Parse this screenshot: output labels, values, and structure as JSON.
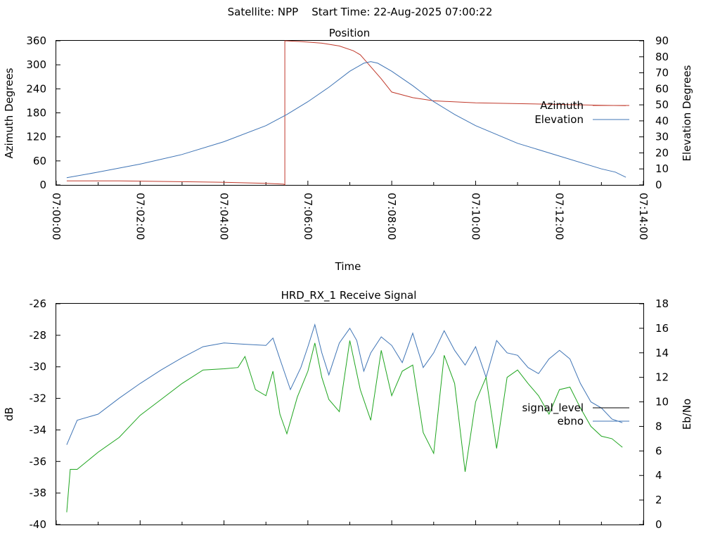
{
  "header": {
    "title": "Satellite: NPP    Start Time: 22-Aug-2025 07:00:22"
  },
  "chart_data": [
    {
      "type": "line",
      "title": "Position",
      "xlabel": "Time",
      "ylabel": "Azimuth Degrees",
      "y2label": "Elevation Degrees",
      "xlim": [
        "07:00:00",
        "07:14:00"
      ],
      "ylim": [
        0,
        360
      ],
      "y2lim": [
        0,
        90
      ],
      "x_ticks": [
        "07:00:00",
        "07:02:00",
        "07:04:00",
        "07:06:00",
        "07:08:00",
        "07:10:00",
        "07:12:00",
        "07:14:00"
      ],
      "y_ticks": [
        "0",
        "60",
        "120",
        "180",
        "240",
        "300",
        "360"
      ],
      "y2_ticks": [
        "0",
        "10",
        "20",
        "30",
        "40",
        "50",
        "60",
        "70",
        "80",
        "90"
      ],
      "legend_position": "right",
      "series": [
        {
          "name": "Azimuth",
          "axis": "left",
          "color": "#c0392b",
          "points": [
            [
              "07:00:15",
              10
            ],
            [
              "07:01:30",
              10
            ],
            [
              "07:03:00",
              8
            ],
            [
              "07:04:00",
              6.5
            ],
            [
              "07:05:00",
              4
            ],
            [
              "07:05:25",
              2
            ],
            [
              "07:05:27",
              0.5
            ],
            [
              "07:05:27",
              360
            ],
            [
              "07:05:50",
              358
            ],
            [
              "07:06:20",
              354
            ],
            [
              "07:06:45",
              347
            ],
            [
              "07:07:05",
              335
            ],
            [
              "07:07:15",
              325
            ],
            [
              "07:07:25",
              305
            ],
            [
              "07:07:35",
              285
            ],
            [
              "07:07:45",
              265
            ],
            [
              "07:08:00",
              232
            ],
            [
              "07:08:30",
              218
            ],
            [
              "07:09:00",
              210
            ],
            [
              "07:10:00",
              205
            ],
            [
              "07:11:00",
              203
            ],
            [
              "07:12:00",
              201
            ],
            [
              "07:13:00",
              199
            ],
            [
              "07:13:35",
              198
            ]
          ]
        },
        {
          "name": "Elevation",
          "axis": "right",
          "color": "#3f74b5",
          "points": [
            [
              "07:00:15",
              4.5
            ],
            [
              "07:01:00",
              8
            ],
            [
              "07:02:00",
              13
            ],
            [
              "07:03:00",
              19
            ],
            [
              "07:04:00",
              27
            ],
            [
              "07:05:00",
              37
            ],
            [
              "07:05:30",
              44
            ],
            [
              "07:06:00",
              52
            ],
            [
              "07:06:30",
              61
            ],
            [
              "07:07:00",
              71
            ],
            [
              "07:07:20",
              76
            ],
            [
              "07:07:30",
              77
            ],
            [
              "07:07:40",
              76
            ],
            [
              "07:08:00",
              71
            ],
            [
              "07:08:30",
              62
            ],
            [
              "07:09:00",
              52
            ],
            [
              "07:09:30",
              44
            ],
            [
              "07:10:00",
              37
            ],
            [
              "07:11:00",
              26
            ],
            [
              "07:12:00",
              18
            ],
            [
              "07:13:00",
              10
            ],
            [
              "07:13:20",
              8
            ],
            [
              "07:13:35",
              4.8
            ]
          ]
        }
      ]
    },
    {
      "type": "line",
      "title": "HRD_RX_1 Receive Signal",
      "ylabel": "dB",
      "y2label": "Eb/No",
      "ylim": [
        -40,
        -26
      ],
      "y2lim": [
        0,
        18
      ],
      "y_ticks": [
        "-26",
        "-28",
        "-30",
        "-32",
        "-34",
        "-36",
        "-38",
        "-40"
      ],
      "y2_ticks": [
        "0",
        "2",
        "4",
        "6",
        "8",
        "10",
        "12",
        "14",
        "16",
        "18"
      ],
      "legend_position": "right",
      "series": [
        {
          "name": "signal_level",
          "axis": "left",
          "color": "#000000",
          "points": []
        },
        {
          "name": "ebno",
          "axis": "right",
          "color": "#3f74b5",
          "points": [
            [
              "07:00:15",
              6.5
            ],
            [
              "07:00:30",
              8.5
            ],
            [
              "07:01:00",
              9.0
            ],
            [
              "07:01:30",
              10.3
            ],
            [
              "07:02:00",
              11.5
            ],
            [
              "07:02:30",
              12.6
            ],
            [
              "07:03:00",
              13.6
            ],
            [
              "07:03:30",
              14.5
            ],
            [
              "07:04:00",
              14.8
            ],
            [
              "07:04:30",
              14.7
            ],
            [
              "07:05:00",
              14.6
            ],
            [
              "07:05:10",
              15.2
            ],
            [
              "07:05:20",
              13.5
            ],
            [
              "07:05:35",
              11.0
            ],
            [
              "07:05:50",
              12.8
            ],
            [
              "07:06:00",
              14.5
            ],
            [
              "07:06:10",
              16.3
            ],
            [
              "07:06:20",
              14.0
            ],
            [
              "07:06:30",
              12.2
            ],
            [
              "07:06:45",
              14.8
            ],
            [
              "07:07:00",
              16.0
            ],
            [
              "07:07:10",
              15.0
            ],
            [
              "07:07:20",
              12.5
            ],
            [
              "07:07:30",
              14.0
            ],
            [
              "07:07:45",
              15.3
            ],
            [
              "07:08:00",
              14.6
            ],
            [
              "07:08:15",
              13.2
            ],
            [
              "07:08:30",
              15.6
            ],
            [
              "07:08:45",
              12.8
            ],
            [
              "07:09:00",
              14.0
            ],
            [
              "07:09:15",
              15.8
            ],
            [
              "07:09:30",
              14.2
            ],
            [
              "07:09:45",
              13.0
            ],
            [
              "07:10:00",
              14.5
            ],
            [
              "07:10:15",
              12.0
            ],
            [
              "07:10:30",
              15.0
            ],
            [
              "07:10:45",
              14.0
            ],
            [
              "07:11:00",
              13.8
            ],
            [
              "07:11:15",
              12.8
            ],
            [
              "07:11:30",
              12.3
            ],
            [
              "07:11:45",
              13.5
            ],
            [
              "07:12:00",
              14.2
            ],
            [
              "07:12:15",
              13.5
            ],
            [
              "07:12:30",
              11.5
            ],
            [
              "07:12:45",
              10.0
            ],
            [
              "07:13:00",
              9.5
            ],
            [
              "07:13:15",
              8.6
            ],
            [
              "07:13:30",
              8.3
            ]
          ]
        },
        {
          "name": "",
          "axis": "right",
          "color": "#1fa51f",
          "points": [
            [
              "07:00:15",
              1.0
            ],
            [
              "07:00:20",
              4.5
            ],
            [
              "07:00:30",
              4.5
            ],
            [
              "07:01:00",
              5.9
            ],
            [
              "07:01:30",
              7.1
            ],
            [
              "07:02:00",
              8.9
            ],
            [
              "07:02:30",
              10.2
            ],
            [
              "07:03:00",
              11.5
            ],
            [
              "07:03:30",
              12.6
            ],
            [
              "07:04:00",
              12.7
            ],
            [
              "07:04:20",
              12.8
            ],
            [
              "07:04:30",
              13.7
            ],
            [
              "07:04:45",
              11.0
            ],
            [
              "07:05:00",
              10.5
            ],
            [
              "07:05:10",
              12.5
            ],
            [
              "07:05:20",
              9.0
            ],
            [
              "07:05:30",
              7.4
            ],
            [
              "07:05:45",
              10.4
            ],
            [
              "07:06:00",
              12.5
            ],
            [
              "07:06:10",
              14.8
            ],
            [
              "07:06:20",
              12.0
            ],
            [
              "07:06:30",
              10.2
            ],
            [
              "07:06:45",
              9.2
            ],
            [
              "07:07:00",
              15.0
            ],
            [
              "07:07:15",
              11.0
            ],
            [
              "07:07:30",
              8.5
            ],
            [
              "07:07:45",
              14.2
            ],
            [
              "07:08:00",
              10.5
            ],
            [
              "07:08:15",
              12.5
            ],
            [
              "07:08:30",
              13.0
            ],
            [
              "07:08:45",
              7.5
            ],
            [
              "07:09:00",
              5.8
            ],
            [
              "07:09:15",
              13.8
            ],
            [
              "07:09:30",
              11.5
            ],
            [
              "07:09:45",
              4.3
            ],
            [
              "07:10:00",
              10.0
            ],
            [
              "07:10:15",
              12.0
            ],
            [
              "07:10:30",
              6.2
            ],
            [
              "07:10:45",
              12.0
            ],
            [
              "07:11:00",
              12.6
            ],
            [
              "07:11:15",
              11.5
            ],
            [
              "07:11:30",
              10.5
            ],
            [
              "07:11:45",
              9.0
            ],
            [
              "07:12:00",
              11.0
            ],
            [
              "07:12:15",
              11.2
            ],
            [
              "07:12:30",
              9.5
            ],
            [
              "07:12:45",
              8.0
            ],
            [
              "07:13:00",
              7.2
            ],
            [
              "07:13:15",
              7.0
            ],
            [
              "07:13:30",
              6.3
            ]
          ]
        }
      ]
    }
  ]
}
